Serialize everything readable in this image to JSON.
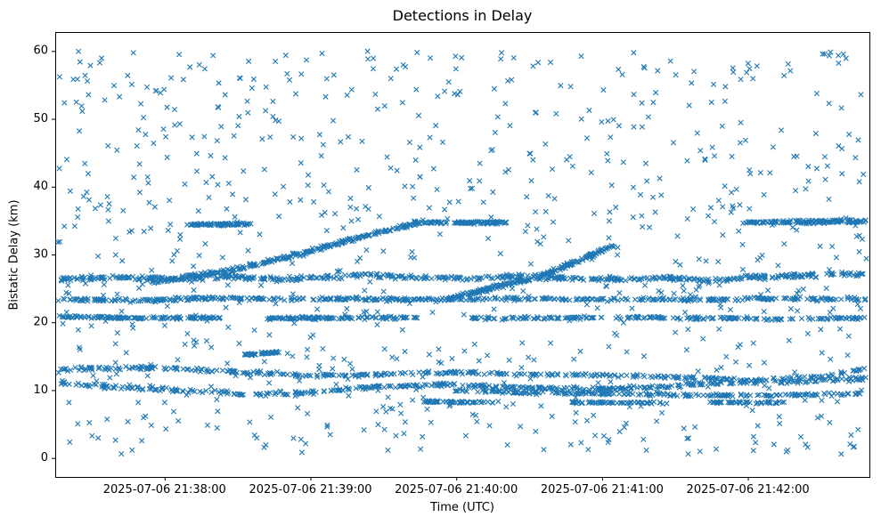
{
  "chart_data": {
    "type": "scatter",
    "title": "Detections in Delay",
    "xlabel": "Time (UTC)",
    "ylabel": "Bistatic Delay (km)",
    "marker": "x",
    "marker_color": "#1f77b4",
    "grid": false,
    "legend": "none",
    "seed": 20250706,
    "x_axis": {
      "unit": "seconds since 2025-07-06 21:37:15 UTC",
      "range_seconds": [
        0,
        335
      ],
      "tick_seconds": [
        45,
        105,
        165,
        225,
        285
      ],
      "tick_labels": [
        "2025-07-06 21:38:00",
        "2025-07-06 21:39:00",
        "2025-07-06 21:40:00",
        "2025-07-06 21:41:00",
        "2025-07-06 21:42:00"
      ]
    },
    "y_axis": {
      "range": [
        -2.8,
        62.8
      ],
      "ticks": [
        0,
        10,
        20,
        30,
        40,
        50,
        60
      ],
      "tick_labels": [
        "0",
        "10",
        "20",
        "30",
        "40",
        "50",
        "60"
      ]
    },
    "tracks": [
      {
        "name": "band-26.5",
        "points": [
          [
            2,
            26.4
          ],
          [
            30,
            26.6
          ],
          [
            50,
            26.2
          ],
          [
            70,
            26.8
          ],
          [
            90,
            26.3
          ],
          [
            110,
            26.6
          ],
          [
            130,
            27.0
          ],
          [
            150,
            26.6
          ],
          [
            170,
            26.4
          ],
          [
            190,
            26.9
          ],
          [
            210,
            26.5
          ],
          [
            230,
            26.3
          ],
          [
            250,
            26.6
          ],
          [
            270,
            26.2
          ],
          [
            290,
            26.7
          ],
          [
            310,
            26.9
          ],
          [
            334,
            27.2
          ]
        ],
        "n": 520,
        "jitter_y": 0.35
      },
      {
        "name": "band-23.4",
        "points": [
          [
            2,
            23.4
          ],
          [
            40,
            23.2
          ],
          [
            60,
            23.6
          ],
          [
            90,
            23.4
          ],
          [
            120,
            23.5
          ],
          [
            150,
            23.3
          ],
          [
            180,
            23.5
          ],
          [
            210,
            23.4
          ],
          [
            240,
            23.4
          ],
          [
            270,
            23.3
          ],
          [
            300,
            23.5
          ],
          [
            334,
            23.4
          ]
        ],
        "n": 480,
        "jitter_y": 0.25
      },
      {
        "name": "band-20.7-a",
        "points": [
          [
            2,
            20.8
          ],
          [
            40,
            20.6
          ],
          [
            68,
            20.7
          ]
        ],
        "n": 120,
        "jitter_y": 0.2
      },
      {
        "name": "band-20.7-b",
        "points": [
          [
            88,
            20.6
          ],
          [
            150,
            20.7
          ]
        ],
        "n": 110,
        "jitter_y": 0.2
      },
      {
        "name": "band-20.7-c",
        "points": [
          [
            170,
            20.6
          ],
          [
            240,
            20.7
          ],
          [
            300,
            20.5
          ],
          [
            334,
            20.6
          ]
        ],
        "n": 200,
        "jitter_y": 0.2
      },
      {
        "name": "riser-1",
        "points": [
          [
            40,
            25.9
          ],
          [
            70,
            27.5
          ],
          [
            100,
            30.0
          ],
          [
            130,
            33.0
          ],
          [
            150,
            34.7
          ]
        ],
        "n": 260,
        "jitter_y": 0.3
      },
      {
        "name": "plateau-1",
        "points": [
          [
            148,
            34.7
          ],
          [
            186,
            34.7
          ]
        ],
        "n": 90,
        "jitter_y": 0.2
      },
      {
        "name": "plateau-left",
        "points": [
          [
            55,
            34.4
          ],
          [
            80,
            34.5
          ]
        ],
        "n": 70,
        "jitter_y": 0.2
      },
      {
        "name": "riser-2",
        "points": [
          [
            163,
            23.6
          ],
          [
            200,
            26.8
          ],
          [
            230,
            31.3
          ]
        ],
        "n": 220,
        "jitter_y": 0.3
      },
      {
        "name": "plateau-right",
        "points": [
          [
            283,
            34.7
          ],
          [
            334,
            34.9
          ]
        ],
        "n": 130,
        "jitter_y": 0.25
      },
      {
        "name": "band-13",
        "points": [
          [
            2,
            13.1
          ],
          [
            45,
            13.3
          ],
          [
            80,
            12.6
          ],
          [
            105,
            12.1
          ],
          [
            135,
            12.3
          ],
          [
            165,
            12.6
          ],
          [
            200,
            12.3
          ],
          [
            230,
            12.2
          ],
          [
            260,
            11.8
          ],
          [
            290,
            11.4
          ],
          [
            315,
            12.0
          ],
          [
            334,
            13.3
          ]
        ],
        "n": 380,
        "jitter_y": 0.25
      },
      {
        "name": "blip-15",
        "points": [
          [
            78,
            15.2
          ],
          [
            92,
            15.6
          ]
        ],
        "n": 40,
        "jitter_y": 0.15
      },
      {
        "name": "band-10.5",
        "points": [
          [
            2,
            11.0
          ],
          [
            30,
            10.4
          ],
          [
            55,
            9.8
          ],
          [
            80,
            9.4
          ],
          [
            105,
            9.7
          ],
          [
            130,
            10.4
          ],
          [
            160,
            10.8
          ],
          [
            190,
            10.4
          ],
          [
            215,
            10.1
          ],
          [
            245,
            10.4
          ],
          [
            275,
            11.0
          ],
          [
            305,
            11.3
          ],
          [
            334,
            11.7
          ]
        ],
        "n": 420,
        "jitter_y": 0.3
      },
      {
        "name": "band-9.5",
        "points": [
          [
            165,
            9.9
          ],
          [
            200,
            9.6
          ],
          [
            240,
            9.4
          ],
          [
            280,
            9.2
          ],
          [
            310,
            9.3
          ],
          [
            334,
            9.5
          ]
        ],
        "n": 200,
        "jitter_y": 0.2
      },
      {
        "name": "band-8-a",
        "points": [
          [
            150,
            8.3
          ],
          [
            182,
            8.2
          ]
        ],
        "n": 55,
        "jitter_y": 0.15
      },
      {
        "name": "band-8-b",
        "points": [
          [
            212,
            8.2
          ],
          [
            252,
            8.1
          ]
        ],
        "n": 60,
        "jitter_y": 0.15
      },
      {
        "name": "band-8-c",
        "points": [
          [
            268,
            8.2
          ],
          [
            300,
            8.2
          ]
        ],
        "n": 50,
        "jitter_y": 0.15
      }
    ],
    "noise": {
      "count": 880,
      "t_range": [
        1,
        334
      ],
      "y_range": [
        0.3,
        60.2
      ]
    }
  }
}
